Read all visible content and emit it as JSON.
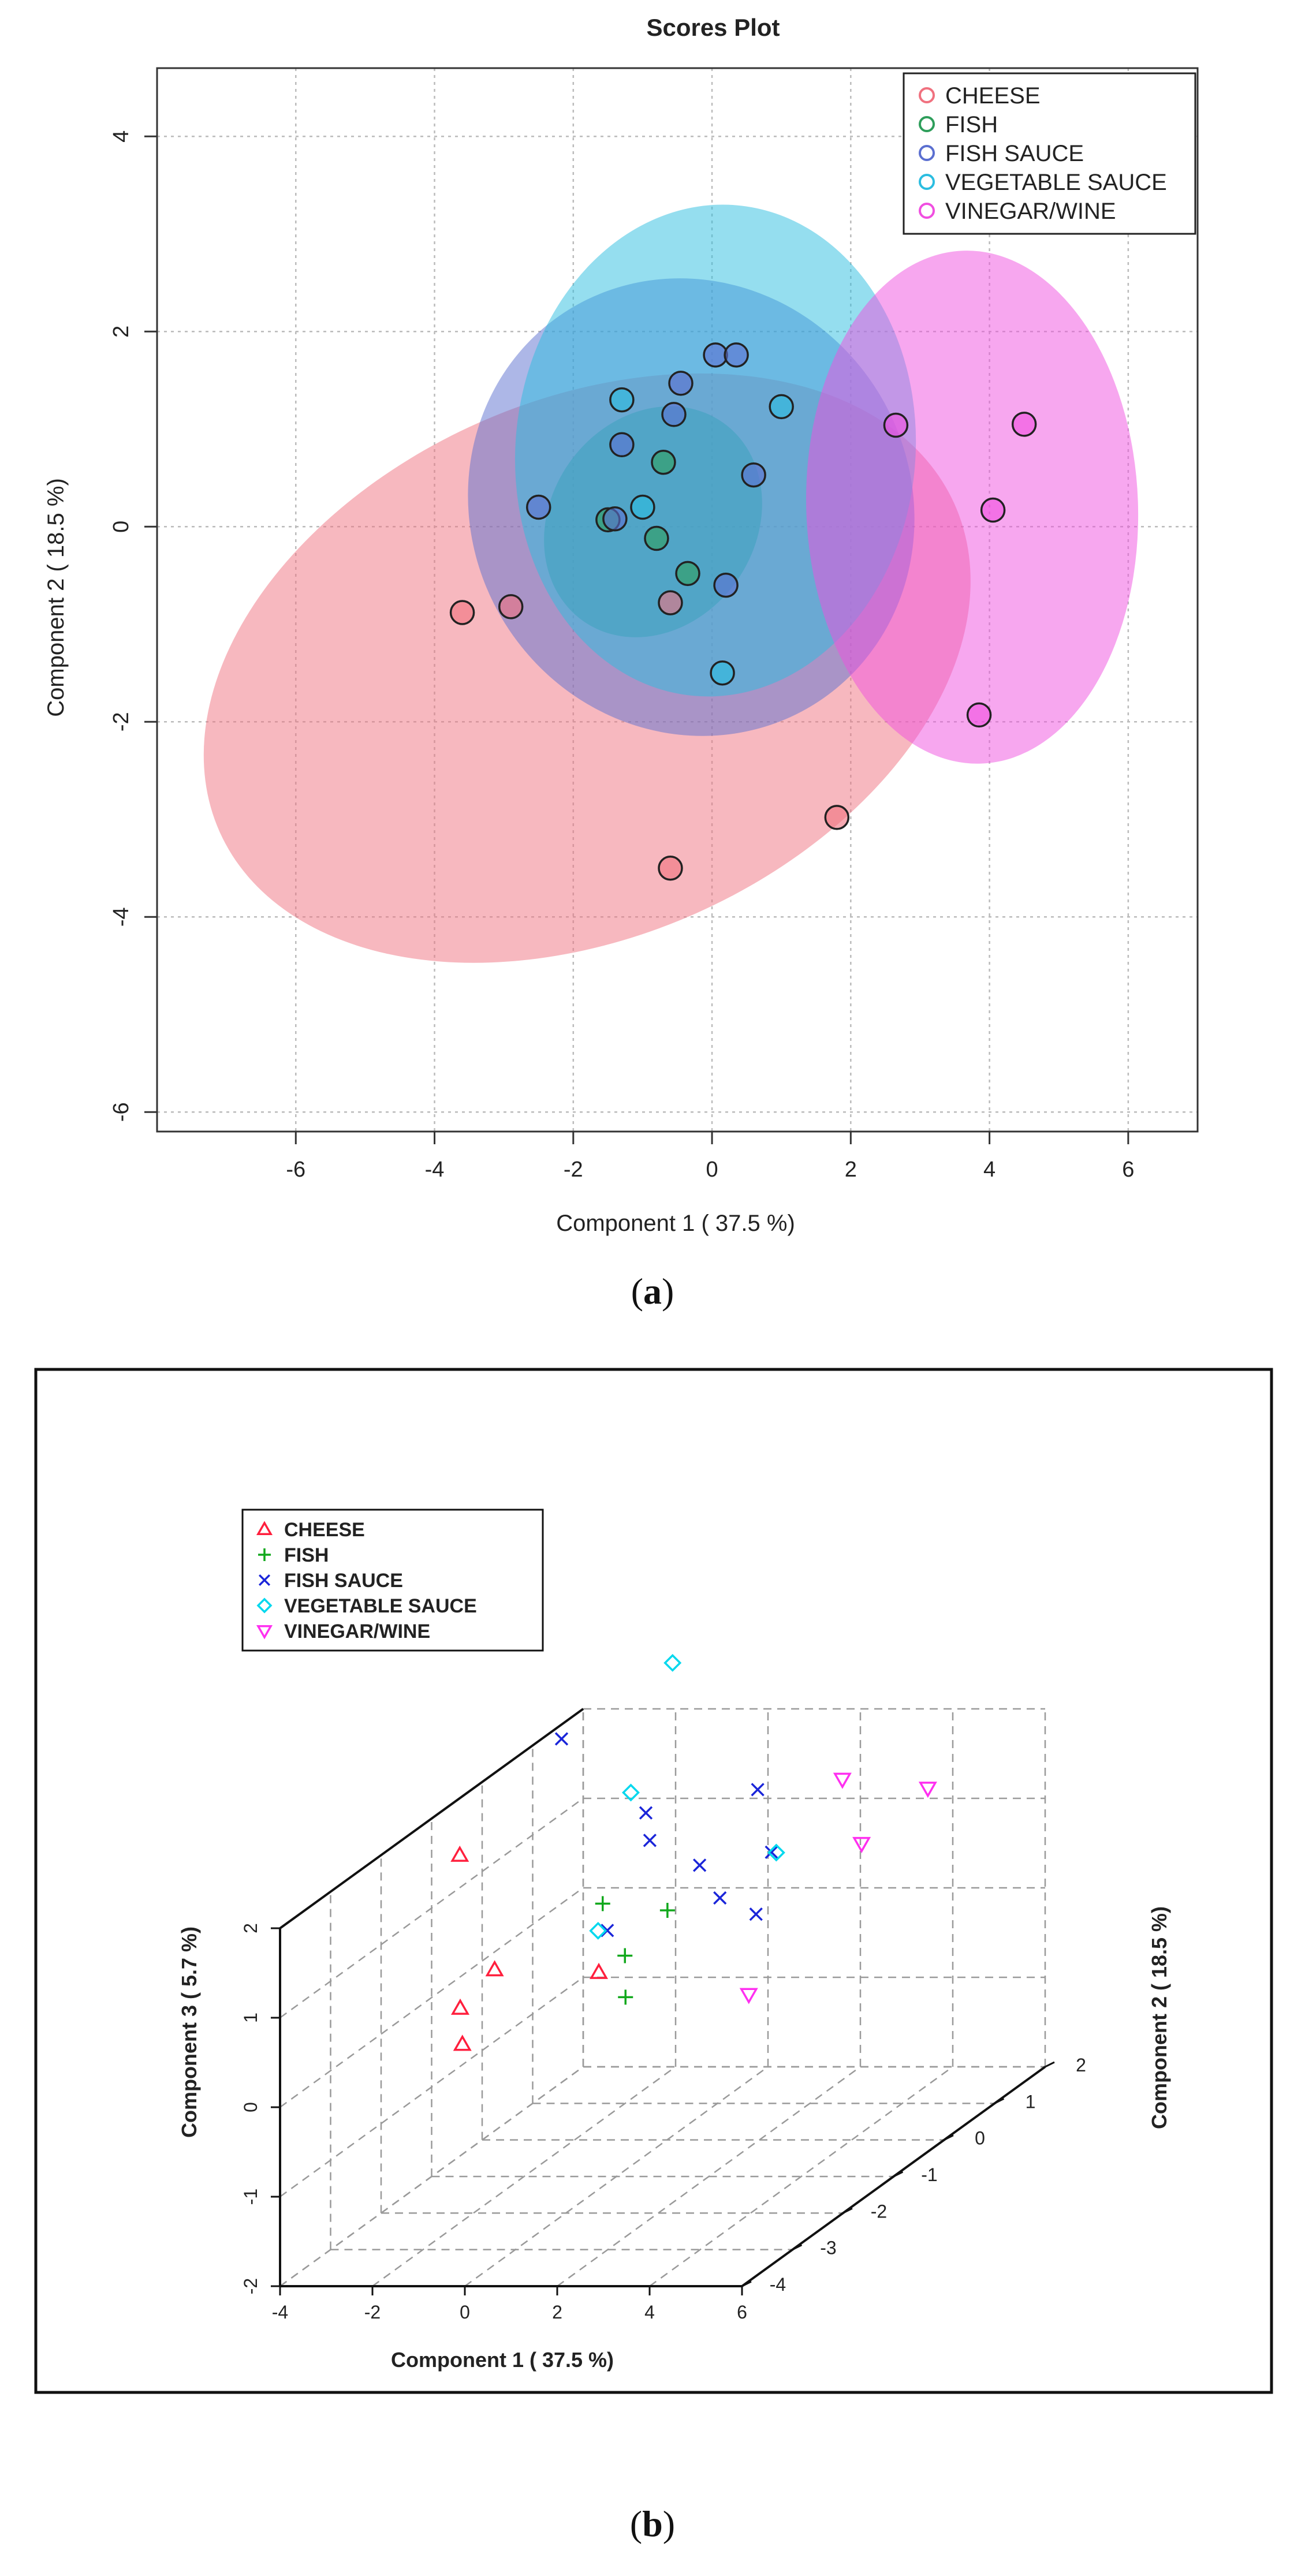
{
  "colors": {
    "cheese": "#f0717f",
    "fish": "#2e9e5b",
    "fish_sauce": "#5b6fd0",
    "vegetable_sauce": "#2bbde0",
    "vinegar_wine": "#f04fe0",
    "cheese_3d": "#ff1f3d",
    "fish_3d": "#11a81c",
    "fish_sauce_3d": "#1a25d9",
    "vegetable_sauce_3d": "#00d8ee",
    "vinegar_wine_3d": "#ff2ff0"
  },
  "panel_a": {
    "caption_open": "(",
    "caption_letter": "a",
    "caption_close": ")",
    "chart_data": {
      "type": "scatter",
      "title": "Scores Plot",
      "xlabel": "Component 1 ( 37.5 %)",
      "ylabel": "Component 2 ( 18.5 %)",
      "xlim": [
        -8,
        7
      ],
      "ylim": [
        -6.2,
        4.7
      ],
      "xticks": [
        -6,
        -4,
        -2,
        0,
        2,
        4,
        6
      ],
      "yticks": [
        -6,
        -4,
        -2,
        0,
        2,
        4
      ],
      "grid": true,
      "legend_position": "top-right",
      "series": [
        {
          "name": "CHEESE",
          "color_key": "cheese",
          "points": [
            [
              -3.6,
              -0.88
            ],
            [
              -2.9,
              -0.82
            ],
            [
              -0.6,
              -0.78
            ],
            [
              1.8,
              -2.98
            ],
            [
              -0.6,
              -3.5
            ]
          ],
          "ellipse": {
            "cx": -1.8,
            "cy": -1.45,
            "rx": 5.8,
            "ry": 2.75,
            "angle": -24
          }
        },
        {
          "name": "FISH",
          "color_key": "fish",
          "points": [
            [
              -1.5,
              0.07
            ],
            [
              -0.7,
              0.66
            ],
            [
              -0.8,
              -0.12
            ],
            [
              -0.35,
              -0.48
            ]
          ],
          "ellipse": {
            "cx": -0.85,
            "cy": 0.05,
            "rx": 1.75,
            "ry": 1.05,
            "angle": -55
          }
        },
        {
          "name": "FISH SAUCE",
          "color_key": "fish_sauce",
          "points": [
            [
              -2.5,
              0.2
            ],
            [
              -1.3,
              0.84
            ],
            [
              -0.55,
              1.15
            ],
            [
              -0.45,
              1.47
            ],
            [
              0.05,
              1.76
            ],
            [
              0.35,
              1.76
            ],
            [
              0.6,
              0.53
            ],
            [
              0.2,
              -0.6
            ],
            [
              -1.4,
              0.08
            ]
          ],
          "ellipse": {
            "cx": -0.3,
            "cy": 0.2,
            "rx": 3.35,
            "ry": 2.25,
            "angle": 58
          }
        },
        {
          "name": "VEGETABLE SAUCE",
          "color_key": "vegetable_sauce",
          "points": [
            [
              -1.3,
              1.3
            ],
            [
              -1.0,
              0.2
            ],
            [
              1.0,
              1.23
            ],
            [
              0.15,
              -1.5
            ]
          ],
          "ellipse": {
            "cx": 0.05,
            "cy": 0.78,
            "rx": 3.55,
            "ry": 2.05,
            "angle": 95
          }
        },
        {
          "name": "VINEGAR/WINE",
          "color_key": "vinegar_wine",
          "points": [
            [
              2.65,
              1.04
            ],
            [
              4.5,
              1.05
            ],
            [
              4.05,
              0.17
            ],
            [
              3.85,
              -1.93
            ]
          ],
          "ellipse": {
            "cx": 3.75,
            "cy": 0.2,
            "rx": 3.7,
            "ry": 1.7,
            "angle": 88
          }
        }
      ]
    }
  },
  "panel_b": {
    "caption_open": "(",
    "caption_letter": "b",
    "caption_close": ")",
    "chart_data": {
      "type": "scatter3d",
      "xlabel": "Component 1 ( 37.5 %)",
      "ylabel": "Component 2 ( 18.5 %)",
      "zlabel": "Component 3 ( 5.7 %)",
      "xlim": [
        -4,
        6
      ],
      "ylim": [
        -4,
        2
      ],
      "zlim": [
        -2,
        2
      ],
      "xticks": [
        -4,
        -2,
        0,
        2,
        4,
        6
      ],
      "yticks": [
        -4,
        -3,
        -2,
        -1,
        0,
        1,
        2
      ],
      "zticks": [
        -2,
        -1,
        0,
        1,
        2
      ],
      "legend_position": "top-left",
      "series": [
        {
          "name": "CHEESE",
          "marker": "triangle-up",
          "color_key": "cheese_3d",
          "points": [
            [
              -3.5,
              -0.9,
              1.55
            ],
            [
              -2.8,
              -0.85,
              0.25
            ],
            [
              -3.6,
              -0.8,
              -0.2
            ],
            [
              -0.6,
              -0.8,
              0.2
            ],
            [
              -0.6,
              -3.5,
              0.5
            ]
          ]
        },
        {
          "name": "FISH",
          "marker": "plus",
          "color_key": "fish_3d",
          "points": [
            [
              -0.7,
              0.65,
              0.3
            ],
            [
              -0.8,
              -0.1,
              0.1
            ],
            [
              -0.35,
              -0.5,
              -0.2
            ],
            [
              -1.5,
              0.1,
              0.6
            ]
          ]
        },
        {
          "name": "FISH SAUCE",
          "marker": "cross",
          "color_key": "fish_sauce_3d",
          "points": [
            [
              -2.5,
              0.2,
              2.4
            ],
            [
              -1.3,
              0.85,
              1.0
            ],
            [
              -0.55,
              1.15,
              0.6
            ],
            [
              0.05,
              1.75,
              1.2
            ],
            [
              0.35,
              1.75,
              0.5
            ],
            [
              0.6,
              0.5,
              0.5
            ],
            [
              0.2,
              -0.6,
              1.9
            ],
            [
              -1.4,
              0.1,
              0.3
            ],
            [
              1.6,
              0.3,
              0.4
            ]
          ]
        },
        {
          "name": "VEGETABLE SAUCE",
          "marker": "diamond",
          "color_key": "vegetable_sauce_3d",
          "points": [
            [
              -1.3,
              1.3,
              2.8
            ],
            [
              -1.0,
              0.2,
              1.8
            ],
            [
              1.0,
              1.25,
              0.7
            ],
            [
              0.15,
              -1.5,
              0.95
            ]
          ]
        },
        {
          "name": "VINEGAR/WINE",
          "marker": "triangle-down",
          "color_key": "vinegar_wine_3d",
          "points": [
            [
              2.65,
              1.05,
              1.6
            ],
            [
              4.5,
              1.05,
              1.5
            ],
            [
              4.05,
              0.15,
              1.25
            ],
            [
              3.85,
              -1.9,
              0.4
            ]
          ]
        }
      ]
    }
  }
}
